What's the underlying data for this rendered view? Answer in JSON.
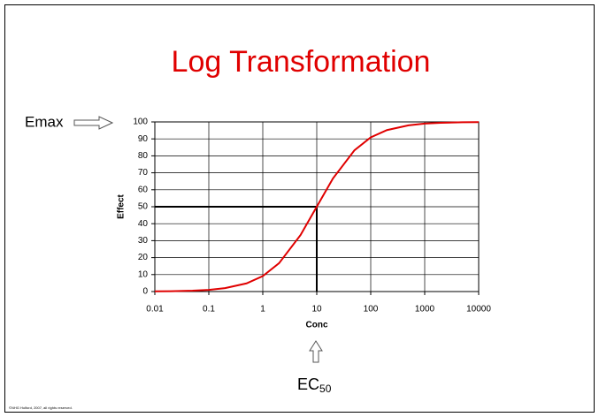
{
  "chart_data": {
    "type": "line",
    "title": "Log Transformation",
    "x_label": "Conc",
    "y_label": "Effect",
    "xscale": "log",
    "x": [
      0.01,
      0.02,
      0.05,
      0.1,
      0.2,
      0.5,
      1,
      2,
      5,
      10,
      20,
      50,
      100,
      200,
      500,
      1000,
      2000,
      5000,
      10000
    ],
    "series": [
      {
        "name": "Effect",
        "color": "#e00000",
        "values": [
          0.1,
          0.2,
          0.5,
          1.0,
          2.0,
          4.8,
          9.1,
          16.7,
          33.3,
          50,
          66.7,
          83.3,
          90.9,
          95.2,
          98.0,
          99.0,
          99.5,
          99.8,
          99.9
        ]
      }
    ],
    "xlim": [
      0.01,
      10000
    ],
    "xticks": [
      0.01,
      0.1,
      1,
      10,
      100,
      1000,
      10000
    ],
    "ylim": [
      0,
      100
    ],
    "yticks": [
      0,
      10,
      20,
      30,
      40,
      50,
      60,
      70,
      80,
      90,
      100
    ],
    "grid": true,
    "reference": {
      "x": 10,
      "y": 50
    },
    "annotations": {
      "emax": "Emax",
      "ec50_main": "EC",
      "ec50_sub": "50"
    },
    "footer": "©NHG Holford, 2007, all rights reserved."
  }
}
